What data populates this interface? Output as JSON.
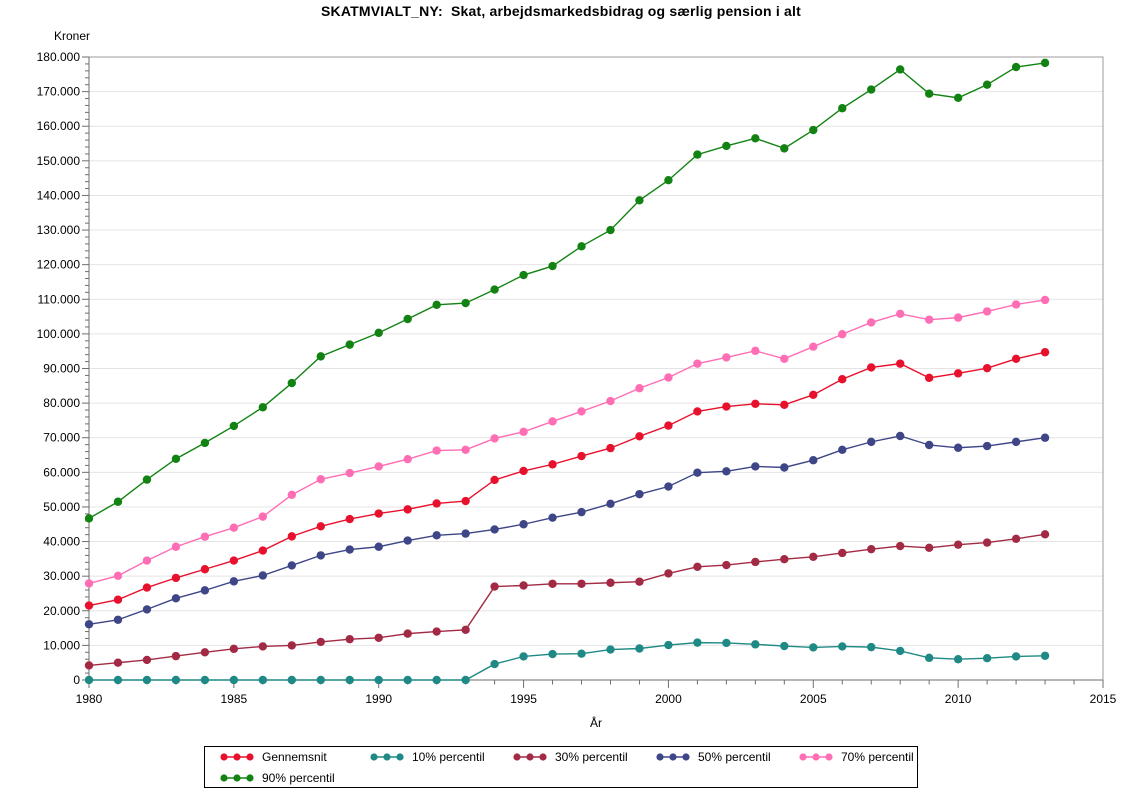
{
  "title": "SKATMVIALT_NY:  Skat, arbejdsmarkedsbidrag og særlig pension i alt",
  "chart_data": {
    "type": "line",
    "title": "SKATMVIALT_NY:  Skat, arbejdsmarkedsbidrag og særlig pension i alt",
    "xlabel": "År",
    "ylabel": "Kroner",
    "xlim": [
      1980,
      2015
    ],
    "ylim": [
      0,
      180000
    ],
    "grid": "horizontal",
    "legend_position": "bottom",
    "x_ticks": [
      1980,
      1985,
      1990,
      1995,
      2000,
      2005,
      2010,
      2015
    ],
    "x_tick_labels": [
      "1980",
      "1985",
      "1990",
      "1995",
      "2000",
      "2005",
      "2010",
      "2015"
    ],
    "x_minor_interval": 1,
    "y_ticks": [
      0,
      10000,
      20000,
      30000,
      40000,
      50000,
      60000,
      70000,
      80000,
      90000,
      100000,
      110000,
      120000,
      130000,
      140000,
      150000,
      160000,
      170000,
      180000
    ],
    "y_tick_labels": [
      "0",
      "10.000",
      "20.000",
      "30.000",
      "40.000",
      "50.000",
      "60.000",
      "70.000",
      "80.000",
      "90.000",
      "100.000",
      "110.000",
      "120.000",
      "130.000",
      "140.000",
      "150.000",
      "160.000",
      "170.000",
      "180.000"
    ],
    "y_minor_interval": 2000,
    "x": [
      1980,
      1981,
      1982,
      1983,
      1984,
      1985,
      1986,
      1987,
      1988,
      1989,
      1990,
      1991,
      1992,
      1993,
      1994,
      1995,
      1996,
      1997,
      1998,
      1999,
      2000,
      2001,
      2002,
      2003,
      2004,
      2005,
      2006,
      2007,
      2008,
      2009,
      2010,
      2011,
      2012,
      2013
    ],
    "series": [
      {
        "name": "Gennemsnit",
        "color": "#e8112d",
        "values": [
          21500,
          23200,
          26700,
          29500,
          32000,
          34500,
          37400,
          41500,
          44400,
          46500,
          48100,
          49300,
          51000,
          51700,
          57800,
          60400,
          62300,
          64700,
          67000,
          70400,
          73500,
          77600,
          79000,
          79800,
          79500,
          82400,
          86900,
          90300,
          91400,
          87300,
          88600,
          90100,
          92800,
          94700
        ]
      },
      {
        "name": "10% percentil",
        "color": "#1f8a85",
        "values": [
          0,
          0,
          0,
          0,
          0,
          0,
          0,
          0,
          0,
          0,
          0,
          0,
          0,
          0,
          4600,
          6800,
          7500,
          7600,
          8800,
          9100,
          10100,
          10800,
          10700,
          10300,
          9800,
          9400,
          9700,
          9500,
          8400,
          6400,
          6000,
          6300,
          6800,
          7000
        ]
      },
      {
        "name": "30% percentil",
        "color": "#a32a45",
        "values": [
          4200,
          5000,
          5800,
          6900,
          8000,
          9000,
          9700,
          10000,
          11000,
          11800,
          12200,
          13400,
          14000,
          14500,
          27000,
          27300,
          27800,
          27800,
          28100,
          28400,
          30800,
          32700,
          33200,
          34100,
          34900,
          35600,
          36700,
          37800,
          38700,
          38200,
          39100,
          39700,
          40800,
          42100
        ]
      },
      {
        "name": "50% percentil",
        "color": "#3e4687",
        "values": [
          16100,
          17400,
          20400,
          23600,
          25900,
          28500,
          30200,
          33100,
          36000,
          37700,
          38500,
          40300,
          41800,
          42300,
          43500,
          45000,
          46900,
          48500,
          50900,
          53700,
          55900,
          59900,
          60300,
          61700,
          61400,
          63500,
          66500,
          68800,
          70500,
          67900,
          67100,
          67600,
          68800,
          70000
        ]
      },
      {
        "name": "70% percentil",
        "color": "#ff6eb4",
        "values": [
          27900,
          30100,
          34500,
          38500,
          41400,
          44000,
          47200,
          53500,
          58000,
          59800,
          61700,
          63800,
          66300,
          66500,
          69800,
          71700,
          74700,
          77600,
          80600,
          84300,
          87400,
          91400,
          93200,
          95100,
          92800,
          96300,
          99900,
          103300,
          105800,
          104100,
          104700,
          106500,
          108500,
          109800
        ]
      },
      {
        "name": "90% percentil",
        "color": "#128312",
        "values": [
          46700,
          51500,
          57900,
          63900,
          68500,
          73400,
          78800,
          85800,
          93500,
          96900,
          100300,
          104300,
          108400,
          108900,
          112800,
          117000,
          119600,
          125300,
          130000,
          138600,
          144400,
          151800,
          154300,
          156500,
          153600,
          158900,
          165200,
          170600,
          176400,
          169400,
          168200,
          172000,
          177100,
          178300
        ]
      }
    ]
  },
  "colors": {
    "grid": "#e4e4e4",
    "frame": "#9b9b9b",
    "axis": "#6e6e6e",
    "background": "#ffffff"
  }
}
